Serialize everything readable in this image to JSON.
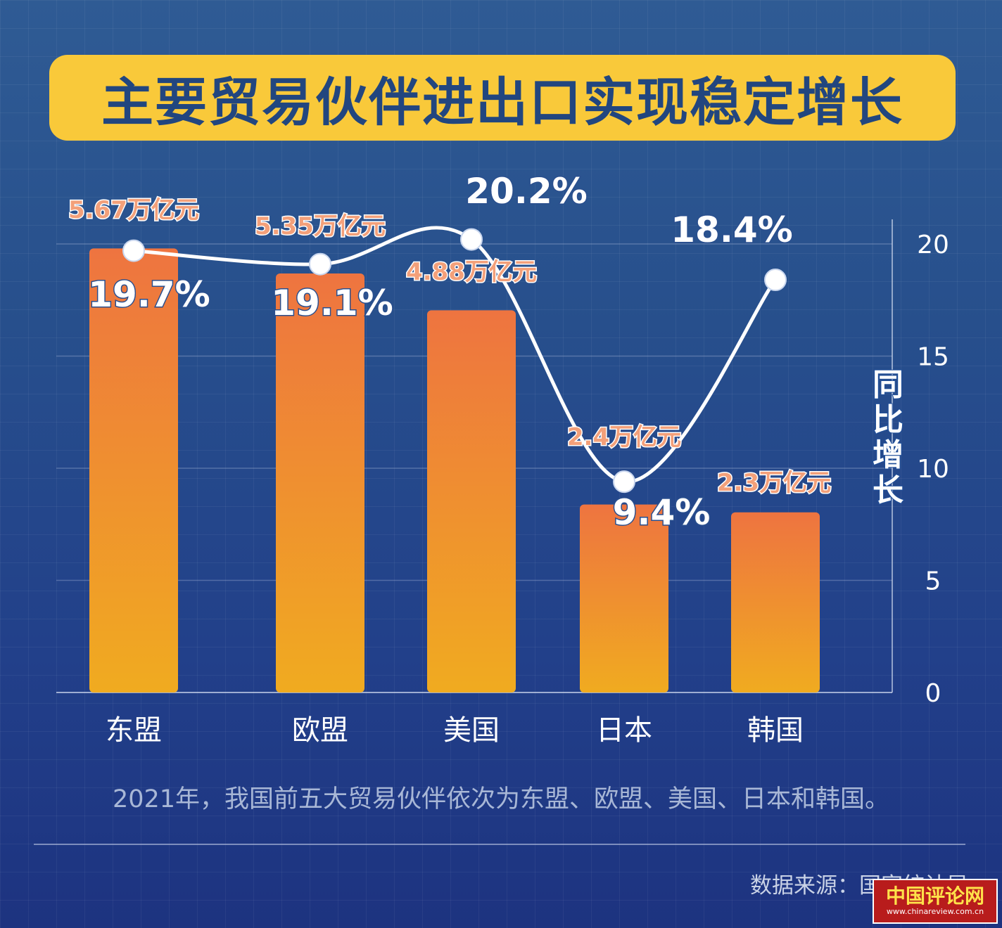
{
  "title": "主要贸易伙伴进出口实现稳定增长",
  "subtitle": "2021年，我国前五大贸易伙伴依次为东盟、欧盟、美国、日本和韩国。",
  "source": "数据来源：国家统计局",
  "watermark": {
    "name": "中国评论网",
    "url": "www.chinareview.com.cn"
  },
  "colors": {
    "bar_top": "#ee7440",
    "bar_bottom": "#f0ab20",
    "line": "#ffffff",
    "value_label": "#f3a07a",
    "title_bg": "#f9c93a",
    "title_text": "#22467f"
  },
  "chart_data": {
    "type": "bar",
    "categories": [
      "东盟",
      "欧盟",
      "美国",
      "日本",
      "韩国"
    ],
    "series": [
      {
        "values": [
          5.67,
          5.35,
          4.88,
          2.4,
          2.3
        ],
        "labels": [
          "5.67万亿元",
          "5.35万亿元",
          "4.88万亿元",
          "2.4万亿元",
          "2.3万亿元"
        ]
      },
      {
        "type": "line",
        "values": [
          19.7,
          19.1,
          20.2,
          9.4,
          18.4
        ],
        "labels": [
          "19.7%",
          "19.1%",
          "20.2%",
          "9.4%",
          "18.4%"
        ]
      }
    ],
    "y2label": "同比增长",
    "y2ticks": [
      "0",
      "5",
      "10",
      "15",
      "20"
    ],
    "y2lim": [
      0,
      20
    ],
    "grid": true
  }
}
